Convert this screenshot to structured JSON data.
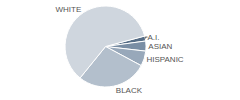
{
  "chart_data": {
    "type": "pie",
    "categories": [
      "A.I.",
      "ASIAN",
      "HISPANIC",
      "BLACK",
      "WHITE"
    ],
    "values": [
      2,
      4,
      6,
      28,
      60
    ],
    "colors": [
      "#566d86",
      "#7a8ea4",
      "#98a8ba",
      "#b3bfcc",
      "#cfd6de"
    ]
  }
}
